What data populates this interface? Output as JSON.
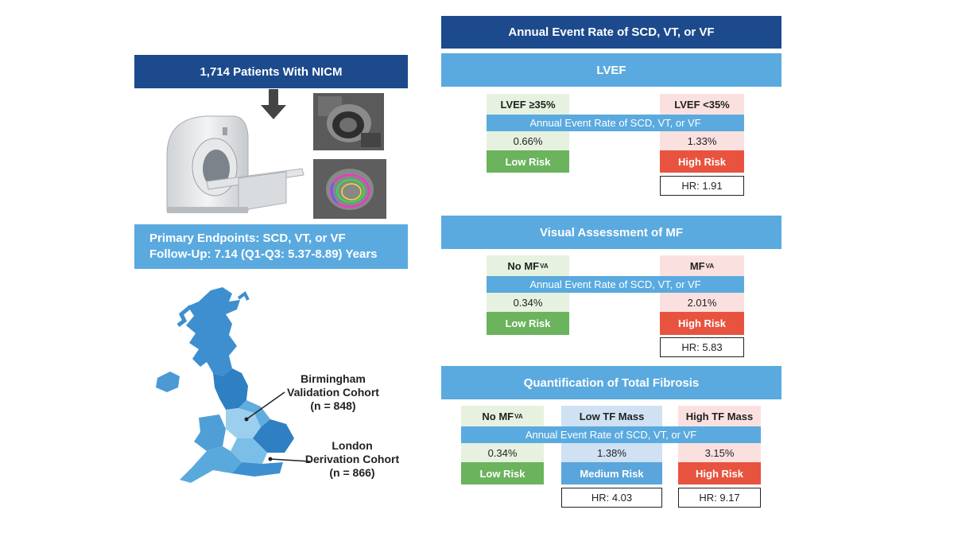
{
  "left": {
    "patients_title": "1,714 Patients With NICM",
    "endpoints_line1": "Primary Endpoints: SCD, VT, or VF",
    "endpoints_line2": "Follow-Up: 7.14  (Q1-Q3: 5.37-8.89) Years",
    "map": {
      "birmingham_line1": "Birmingham",
      "birmingham_line2": "Validation Cohort",
      "birmingham_n": "(n = 848)",
      "london_line1": "London",
      "london_line2": "Derivation Cohort",
      "london_n": "(n = 866)"
    }
  },
  "right": {
    "main_title": "Annual Event Rate of SCD, VT, or VF",
    "band_text": "Annual Event Rate of SCD, VT, or VF",
    "lvef": {
      "title": "LVEF",
      "left_group": "LVEF ≥35%",
      "right_group": "LVEF <35%",
      "left_rate": "0.66%",
      "right_rate": "1.33%",
      "left_risk": "Low Risk",
      "right_risk": "High Risk",
      "hr": "HR: 1.91"
    },
    "visual": {
      "title": "Visual Assessment of MF",
      "left_group": "No MF",
      "right_group": "MF",
      "subscript": "VA",
      "left_rate": "0.34%",
      "right_rate": "2.01%",
      "left_risk": "Low Risk",
      "right_risk": "High Risk",
      "hr": "HR: 5.83"
    },
    "quant": {
      "title": "Quantification of Total Fibrosis",
      "group1": "No MF",
      "group1_sub": "VA",
      "group2": "Low TF Mass",
      "group3": "High TF Mass",
      "rate1": "0.34%",
      "rate2": "1.38%",
      "rate3": "3.15%",
      "risk1": "Low Risk",
      "risk2": "Medium Risk",
      "risk3": "High Risk",
      "hr2": "HR: 4.03",
      "hr3": "HR: 9.17"
    }
  },
  "colors": {
    "navy": "#1c4a8c",
    "blue": "#5aaadf",
    "low_risk_green": "#6bb35d",
    "high_risk_red": "#e8533f",
    "medium_risk_blue": "#5aa5db"
  }
}
